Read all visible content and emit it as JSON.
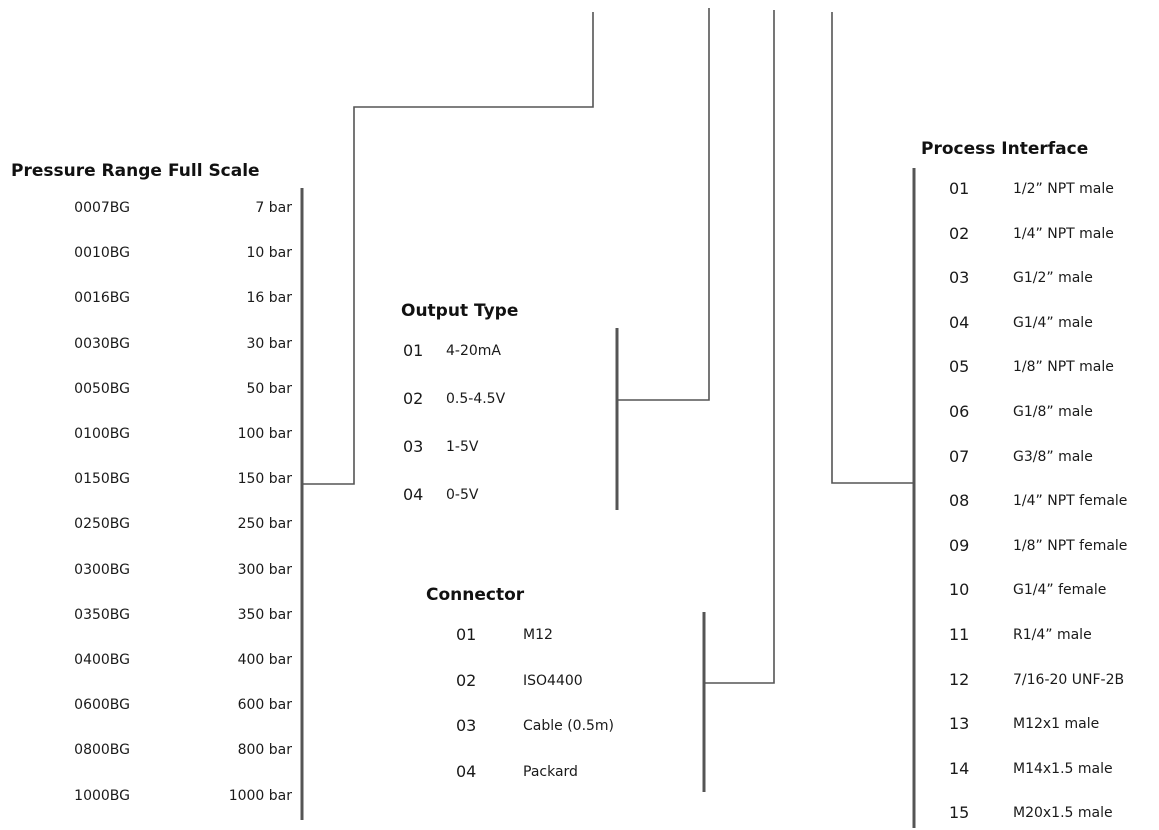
{
  "pressure": {
    "heading_range": "Pressure Range",
    "heading_scale": "Full Scale",
    "items": [
      {
        "code": "0007BG",
        "scale": "7 bar"
      },
      {
        "code": "0010BG",
        "scale": "10 bar"
      },
      {
        "code": "0016BG",
        "scale": "16 bar"
      },
      {
        "code": "0030BG",
        "scale": "30 bar"
      },
      {
        "code": "0050BG",
        "scale": "50 bar"
      },
      {
        "code": "0100BG",
        "scale": "100 bar"
      },
      {
        "code": "0150BG",
        "scale": "150 bar"
      },
      {
        "code": "0250BG",
        "scale": "250 bar"
      },
      {
        "code": "0300BG",
        "scale": "300 bar"
      },
      {
        "code": "0350BG",
        "scale": "350 bar"
      },
      {
        "code": "0400BG",
        "scale": "400 bar"
      },
      {
        "code": "0600BG",
        "scale": "600 bar"
      },
      {
        "code": "0800BG",
        "scale": "800 bar"
      },
      {
        "code": "1000BG",
        "scale": "1000 bar"
      }
    ]
  },
  "output": {
    "heading": "Output Type",
    "items": [
      {
        "code": "01",
        "label": "4-20mA"
      },
      {
        "code": "02",
        "label": "0.5-4.5V"
      },
      {
        "code": "03",
        "label": "1-5V"
      },
      {
        "code": "04",
        "label": "0-5V"
      }
    ]
  },
  "connector": {
    "heading": "Connector",
    "items": [
      {
        "code": "01",
        "label": "M12"
      },
      {
        "code": "02",
        "label": "ISO4400"
      },
      {
        "code": "03",
        "label": "Cable (0.5m)"
      },
      {
        "code": "04",
        "label": "Packard"
      }
    ]
  },
  "process": {
    "heading": "Process Interface",
    "items": [
      {
        "code": "01",
        "label": "1/2” NPT male"
      },
      {
        "code": "02",
        "label": "1/4” NPT male"
      },
      {
        "code": "03",
        "label": "G1/2” male"
      },
      {
        "code": "04",
        "label": "G1/4” male"
      },
      {
        "code": "05",
        "label": "1/8” NPT male"
      },
      {
        "code": "06",
        "label": "G1/8” male"
      },
      {
        "code": "07",
        "label": "G3/8” male"
      },
      {
        "code": "08",
        "label": "1/4” NPT female"
      },
      {
        "code": "09",
        "label": "1/8” NPT female"
      },
      {
        "code": "10",
        "label": "G1/4” female"
      },
      {
        "code": "11",
        "label": "R1/4” male"
      },
      {
        "code": "12",
        "label": "7/16-20 UNF-2B"
      },
      {
        "code": "13",
        "label": "M12x1 male"
      },
      {
        "code": "14",
        "label": "M14x1.5 male"
      },
      {
        "code": "15",
        "label": "M20x1.5 male"
      }
    ]
  }
}
